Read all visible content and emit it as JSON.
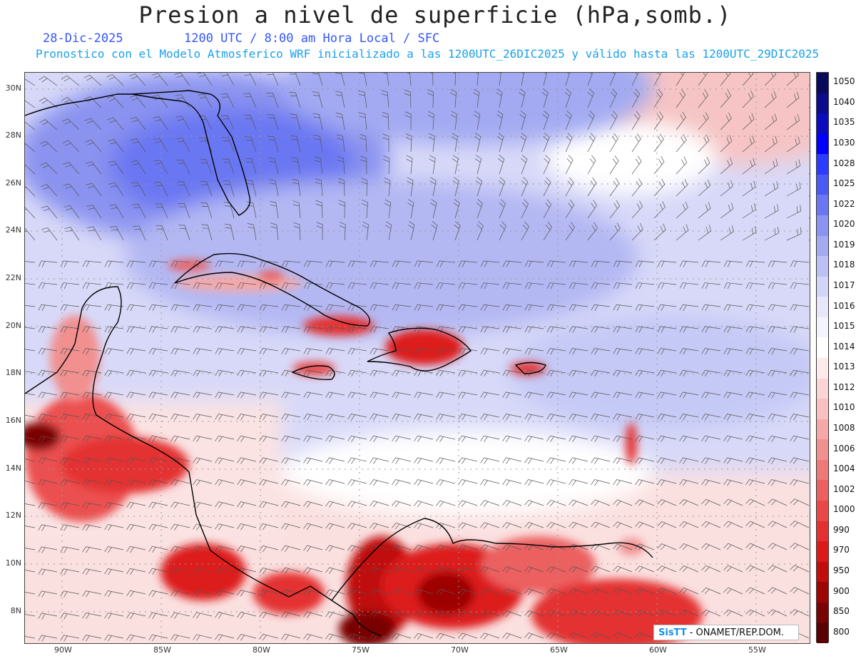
{
  "title": "Presion a nivel de superficie (hPa,somb.)",
  "subtitle": {
    "date": "28-Dic-2025",
    "time": "1200 UTC / 8:00 am Hora Local / SFC",
    "model": "Pronostico con el Modelo Atmosferico WRF inicializado a las 1200UTC_26DIC2025 y válido hasta las  1200UTC_29DIC2025"
  },
  "axes": {
    "lat_labels": [
      "30N",
      "28N",
      "26N",
      "24N",
      "22N",
      "20N",
      "18N",
      "16N",
      "14N",
      "12N",
      "10N",
      "8N"
    ],
    "lon_labels": [
      "90W",
      "85W",
      "80W",
      "75W",
      "70W",
      "65W",
      "60W",
      "55W"
    ]
  },
  "colorbar": {
    "levels": [
      "1050",
      "1040",
      "1035",
      "1030",
      "1028",
      "1025",
      "1022",
      "1020",
      "1019",
      "1018",
      "1017",
      "1016",
      "1015",
      "1014",
      "1013",
      "1012",
      "1010",
      "1008",
      "1006",
      "1004",
      "1002",
      "1000",
      "990",
      "970",
      "950",
      "900",
      "850",
      "800"
    ],
    "colors": [
      "#0a0a5c",
      "#0b0b8c",
      "#0b0bc0",
      "#0000ff",
      "#2a3cff",
      "#4a58f5",
      "#6b77f2",
      "#8a93f0",
      "#a3aaf2",
      "#bcc0f5",
      "#d2d5f8",
      "#e6e7fb",
      "#f4f4fd",
      "#ffffff",
      "#fdebeb",
      "#fbd5d5",
      "#f8c0c0",
      "#f5a8a8",
      "#f29090",
      "#ef7878",
      "#ec6060",
      "#e84848",
      "#e43030",
      "#dd1a1a",
      "#c00d0d",
      "#9e0606",
      "#7a0303",
      "#5a0101"
    ]
  },
  "logo": {
    "brand": "SisTT",
    "org": "- ONAMET/REP.DOM."
  }
}
